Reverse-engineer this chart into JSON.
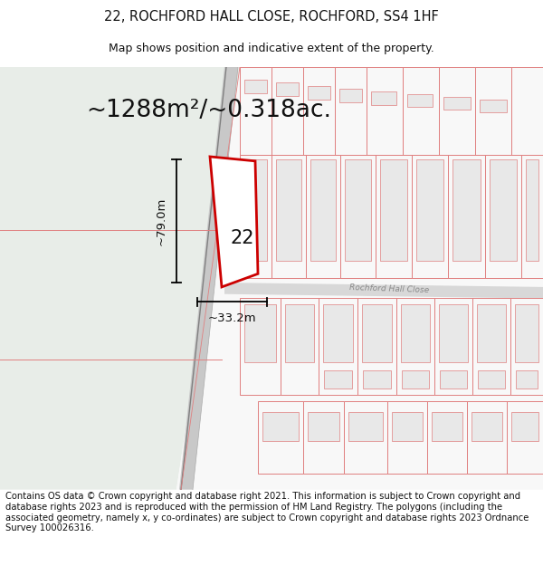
{
  "title_line1": "22, ROCHFORD HALL CLOSE, ROCHFORD, SS4 1HF",
  "title_line2": "Map shows position and indicative extent of the property.",
  "copyright_text": "Contains OS data © Crown copyright and database right 2021. This information is subject to Crown copyright and database rights 2023 and is reproduced with the permission of HM Land Registry. The polygons (including the associated geometry, namely x, y co-ordinates) are subject to Crown copyright and database rights 2023 Ordnance Survey 100026316.",
  "area_label": "~1288m²/~0.318ac.",
  "height_label": "~79.0m",
  "width_label": "~33.2m",
  "number_label": "22",
  "road_label": "Rochford Hall Close",
  "bg_left_color": "#e8ede8",
  "map_bg": "#f8f8f8",
  "building_outline_color": "#e08080",
  "building_fill_color": "#f2f2f2",
  "property_outline_color": "#cc0000",
  "title_fontsize": 10.5,
  "subtitle_fontsize": 9,
  "area_fontsize": 19,
  "label_fontsize": 9.5,
  "copyright_fontsize": 7.2
}
